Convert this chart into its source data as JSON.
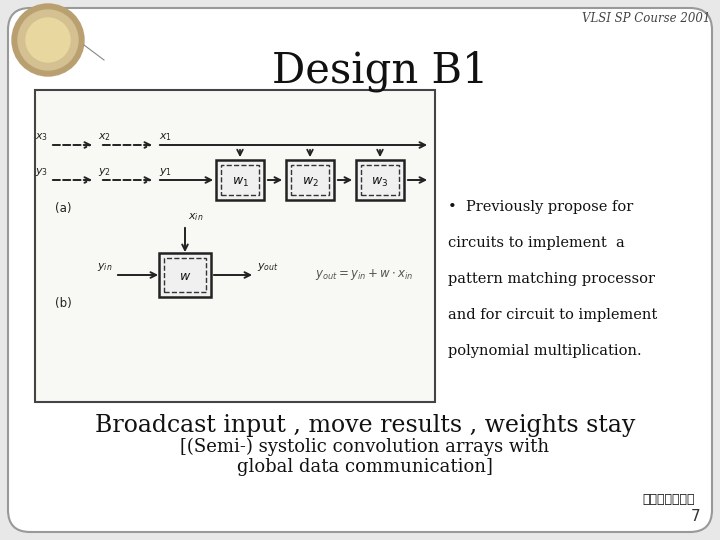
{
  "bg_color": "#e8e8e8",
  "card_bg": "#ffffff",
  "diag_bg": "#f0f0f0",
  "title": "Design B1",
  "header_text": "VLSI SP Course 2001",
  "bullet_lines": [
    "•  Previously propose for",
    "circuits to implement  a",
    "pattern matching processor",
    "and for circuit to implement",
    "polynomial multiplication."
  ],
  "bottom_line1": "Broadcast input , move results , weights stay",
  "bottom_line2": "[(Semi-) systolic convolution arrays with",
  "bottom_line3": "global data communication]",
  "page_number": "7",
  "card_border": "#999999",
  "text_color": "#111111",
  "arrow_color": "#222222",
  "header_color": "#444444"
}
